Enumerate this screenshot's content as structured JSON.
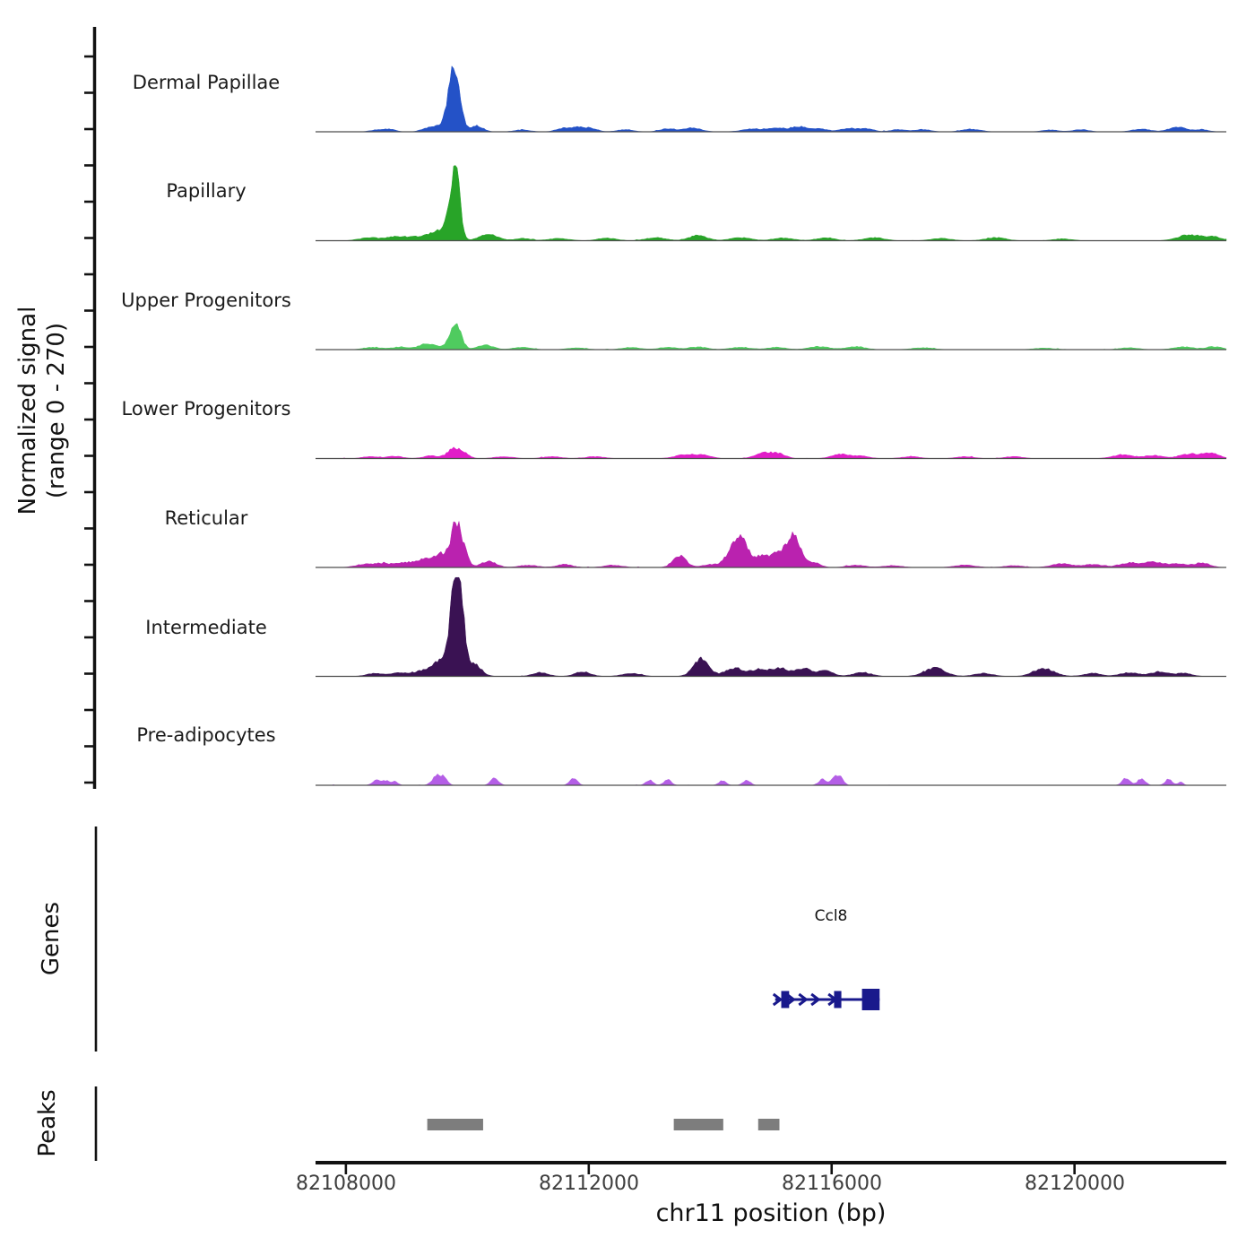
{
  "figure": {
    "ylabel_line1": "Normalized signal",
    "ylabel_line2": "(range 0 - 270)",
    "genes_section_label": "Genes",
    "peaks_section_label": "Peaks",
    "xaxis_title": "chr11 position (bp)"
  },
  "chart_data": {
    "type": "area",
    "title": "",
    "xlabel": "chr11 position (bp)",
    "ylabel": "Normalized signal (range 0 - 270)",
    "x_range_bp": [
      82107500,
      82122500
    ],
    "x_ticks_bp": [
      82108000,
      82112000,
      82116000,
      82120000
    ],
    "x_tick_labels": [
      "82108000",
      "82112000",
      "82116000",
      "82120000"
    ],
    "y_range": [
      0,
      270
    ],
    "grid": false,
    "legend_position": "none",
    "tracks": [
      {
        "name": "Dermal Papillae",
        "color": "#2452c7",
        "peaks": [
          [
            82108550,
            6,
            300
          ],
          [
            82108750,
            5,
            200
          ],
          [
            82109350,
            10,
            250
          ],
          [
            82109550,
            14,
            200
          ],
          [
            82109750,
            150,
            180
          ],
          [
            82109870,
            55,
            160
          ],
          [
            82110150,
            16,
            250
          ],
          [
            82110900,
            5,
            300
          ],
          [
            82111550,
            8,
            250
          ],
          [
            82111800,
            12,
            300
          ],
          [
            82112050,
            8,
            250
          ],
          [
            82112600,
            6,
            300
          ],
          [
            82113300,
            8,
            300
          ],
          [
            82113700,
            10,
            350
          ],
          [
            82114700,
            8,
            400
          ],
          [
            82115100,
            10,
            300
          ],
          [
            82115450,
            14,
            300
          ],
          [
            82115800,
            8,
            300
          ],
          [
            82116300,
            9,
            350
          ],
          [
            82116600,
            7,
            250
          ],
          [
            82117100,
            6,
            300
          ],
          [
            82117500,
            6,
            300
          ],
          [
            82118300,
            7,
            350
          ],
          [
            82119600,
            5,
            300
          ],
          [
            82120100,
            6,
            300
          ],
          [
            82121100,
            7,
            350
          ],
          [
            82121700,
            12,
            350
          ],
          [
            82122100,
            6,
            250
          ]
        ]
      },
      {
        "name": "Papillary",
        "color": "#28a428",
        "peaks": [
          [
            82108400,
            8,
            400
          ],
          [
            82108800,
            9,
            300
          ],
          [
            82109100,
            10,
            350
          ],
          [
            82109450,
            22,
            300
          ],
          [
            82109650,
            30,
            200
          ],
          [
            82109800,
            205,
            170
          ],
          [
            82110350,
            18,
            350
          ],
          [
            82110900,
            6,
            300
          ],
          [
            82111500,
            6,
            400
          ],
          [
            82112300,
            7,
            350
          ],
          [
            82113100,
            8,
            400
          ],
          [
            82113800,
            14,
            350
          ],
          [
            82114500,
            8,
            400
          ],
          [
            82115200,
            7,
            400
          ],
          [
            82115900,
            8,
            350
          ],
          [
            82116700,
            8,
            400
          ],
          [
            82117800,
            6,
            400
          ],
          [
            82118700,
            8,
            400
          ],
          [
            82119800,
            5,
            350
          ],
          [
            82121900,
            16,
            450
          ],
          [
            82122300,
            10,
            300
          ]
        ]
      },
      {
        "name": "Upper Progenitors",
        "color": "#4fcb5f",
        "peaks": [
          [
            82108450,
            6,
            350
          ],
          [
            82108900,
            7,
            300
          ],
          [
            82109350,
            16,
            350
          ],
          [
            82109800,
            72,
            220
          ],
          [
            82110300,
            12,
            300
          ],
          [
            82110900,
            6,
            350
          ],
          [
            82111800,
            5,
            350
          ],
          [
            82112700,
            6,
            350
          ],
          [
            82113300,
            6,
            350
          ],
          [
            82113800,
            7,
            350
          ],
          [
            82114500,
            6,
            400
          ],
          [
            82115100,
            6,
            350
          ],
          [
            82115800,
            8,
            400
          ],
          [
            82116400,
            8,
            350
          ],
          [
            82117500,
            5,
            400
          ],
          [
            82119500,
            4,
            400
          ],
          [
            82120900,
            5,
            350
          ],
          [
            82121800,
            7,
            400
          ],
          [
            82122300,
            8,
            300
          ]
        ]
      },
      {
        "name": "Lower Progenitors",
        "color": "#e11dc8",
        "peaks": [
          [
            82108400,
            5,
            300
          ],
          [
            82108800,
            6,
            300
          ],
          [
            82109400,
            7,
            300
          ],
          [
            82109780,
            26,
            250
          ],
          [
            82109950,
            12,
            200
          ],
          [
            82110600,
            5,
            350
          ],
          [
            82111400,
            5,
            350
          ],
          [
            82112100,
            5,
            350
          ],
          [
            82113600,
            10,
            400
          ],
          [
            82113900,
            8,
            300
          ],
          [
            82114900,
            16,
            350
          ],
          [
            82115150,
            10,
            250
          ],
          [
            82116150,
            12,
            350
          ],
          [
            82116500,
            6,
            300
          ],
          [
            82117300,
            5,
            350
          ],
          [
            82118200,
            5,
            350
          ],
          [
            82119000,
            5,
            350
          ],
          [
            82120800,
            10,
            400
          ],
          [
            82121300,
            8,
            350
          ],
          [
            82121900,
            12,
            400
          ],
          [
            82122250,
            14,
            300
          ]
        ]
      },
      {
        "name": "Reticular",
        "color": "#ba22af",
        "peaks": [
          [
            82108300,
            8,
            350
          ],
          [
            82108600,
            10,
            300
          ],
          [
            82108900,
            9,
            300
          ],
          [
            82109200,
            16,
            350
          ],
          [
            82109450,
            20,
            300
          ],
          [
            82109600,
            24,
            200
          ],
          [
            82109800,
            112,
            180
          ],
          [
            82109930,
            45,
            180
          ],
          [
            82110350,
            16,
            300
          ],
          [
            82111000,
            6,
            350
          ],
          [
            82111600,
            8,
            300
          ],
          [
            82112400,
            6,
            350
          ],
          [
            82113500,
            30,
            260
          ],
          [
            82114000,
            8,
            300
          ],
          [
            82114380,
            50,
            280
          ],
          [
            82114540,
            55,
            220
          ],
          [
            82114820,
            28,
            280
          ],
          [
            82115120,
            40,
            280
          ],
          [
            82115380,
            80,
            250
          ],
          [
            82115700,
            14,
            250
          ],
          [
            82116400,
            6,
            350
          ],
          [
            82117000,
            5,
            350
          ],
          [
            82118200,
            6,
            400
          ],
          [
            82119000,
            5,
            350
          ],
          [
            82119800,
            10,
            400
          ],
          [
            82120300,
            8,
            350
          ],
          [
            82120900,
            12,
            400
          ],
          [
            82121300,
            14,
            350
          ],
          [
            82121700,
            10,
            350
          ],
          [
            82122100,
            12,
            300
          ]
        ]
      },
      {
        "name": "Intermediate",
        "color": "#3a1253",
        "peaks": [
          [
            82108500,
            8,
            350
          ],
          [
            82108900,
            10,
            300
          ],
          [
            82109250,
            14,
            300
          ],
          [
            82109500,
            30,
            250
          ],
          [
            82109650,
            45,
            180
          ],
          [
            82109790,
            262,
            160
          ],
          [
            82109900,
            150,
            150
          ],
          [
            82110100,
            35,
            280
          ],
          [
            82111200,
            10,
            300
          ],
          [
            82111900,
            12,
            300
          ],
          [
            82112700,
            8,
            350
          ],
          [
            82113850,
            45,
            300
          ],
          [
            82114400,
            22,
            350
          ],
          [
            82114800,
            18,
            300
          ],
          [
            82115150,
            22,
            350
          ],
          [
            82115550,
            20,
            300
          ],
          [
            82115900,
            14,
            300
          ],
          [
            82116500,
            10,
            350
          ],
          [
            82117700,
            22,
            400
          ],
          [
            82118500,
            8,
            350
          ],
          [
            82119500,
            20,
            400
          ],
          [
            82120300,
            8,
            350
          ],
          [
            82120900,
            10,
            350
          ],
          [
            82121400,
            12,
            350
          ],
          [
            82121800,
            8,
            300
          ]
        ]
      },
      {
        "name": "Pre-adipocytes",
        "color": "#b45ee6",
        "peaks": [
          [
            82108500,
            14,
            150
          ],
          [
            82108650,
            12,
            130
          ],
          [
            82108800,
            10,
            130
          ],
          [
            82109500,
            26,
            180
          ],
          [
            82109620,
            14,
            140
          ],
          [
            82110450,
            20,
            150
          ],
          [
            82111750,
            18,
            150
          ],
          [
            82113000,
            14,
            140
          ],
          [
            82113300,
            16,
            140
          ],
          [
            82114200,
            12,
            140
          ],
          [
            82114600,
            14,
            140
          ],
          [
            82115850,
            16,
            150
          ],
          [
            82116050,
            22,
            130
          ],
          [
            82116150,
            20,
            120
          ],
          [
            82120850,
            20,
            150
          ],
          [
            82121100,
            18,
            140
          ],
          [
            82121550,
            16,
            140
          ],
          [
            82121750,
            8,
            100
          ]
        ]
      }
    ],
    "genes": [
      {
        "name": "Ccl8",
        "strand": "+",
        "color": "#19198c",
        "start_bp": 82115070,
        "end_bp": 82116790,
        "exons_bp": [
          [
            82115170,
            82115300
          ],
          [
            82116040,
            82116160
          ],
          [
            82116500,
            82116790
          ]
        ]
      }
    ],
    "peak_regions_bp": [
      [
        82109340,
        82110260
      ],
      [
        82113400,
        82114215
      ],
      [
        82114790,
        82115140
      ]
    ],
    "peak_region_color": "#7d7d7d",
    "baseline_color": "#4d4d4d",
    "axis_color": "#111111"
  }
}
